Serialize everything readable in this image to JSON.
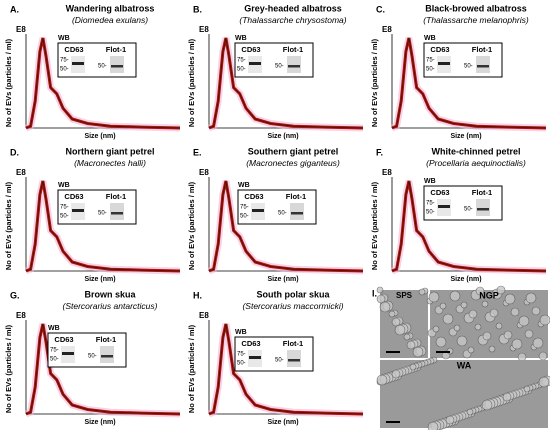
{
  "panels": [
    {
      "letter": "A.",
      "title": "Wandering albatross",
      "species": "Diomedea exulans",
      "exponent": "E8",
      "y_label": "No of EVs (particles / ml)",
      "x_label": "Size (nm)",
      "blot": {
        "label": "WB",
        "markers": [
          "CD63",
          "Flot-1"
        ],
        "sizes_left": [
          "75-",
          "50-"
        ],
        "sizes_right": [
          "50-"
        ]
      }
    },
    {
      "letter": "B.",
      "title": "Grey-headed albatross",
      "species": "Thalassarche chrysostoma",
      "exponent": "E8",
      "y_label": "No of EVs (particles / ml)",
      "x_label": "Size (nm)",
      "blot": {
        "label": "WB",
        "markers": [
          "CD63",
          "Flot-1"
        ],
        "sizes_left": [
          "75-",
          "50-"
        ],
        "sizes_right": [
          "50-"
        ]
      }
    },
    {
      "letter": "C.",
      "title": "Black-browed albatross",
      "species": "Thalassarche melanophris",
      "exponent": "E8",
      "y_label": "No of EVs (particles / ml)",
      "x_label": "Size (nm)",
      "blot": {
        "label": "WB",
        "markers": [
          "CD63",
          "Flot-1"
        ],
        "sizes_left": [
          "75-",
          "50-"
        ],
        "sizes_right": [
          "50-"
        ]
      }
    },
    {
      "letter": "D.",
      "title": "Northern giant petrel",
      "species": "Macronectes halli",
      "exponent": "E8",
      "y_label": "No of EVs (particles / ml)",
      "x_label": "Size (nm)",
      "blot": {
        "label": "WB",
        "markers": [
          "CD63",
          "Flot-1"
        ],
        "sizes_left": [
          "75-",
          "50-"
        ],
        "sizes_right": [
          "50-"
        ]
      }
    },
    {
      "letter": "E.",
      "title": "Southern giant petrel",
      "species": "Macronectes giganteus",
      "exponent": "E8",
      "y_label": "No of EVs (particles / ml)",
      "x_label": "Size (nm)",
      "blot": {
        "label": "WB",
        "markers": [
          "CD63",
          "Flot-1"
        ],
        "sizes_left": [
          "75-",
          "50-"
        ],
        "sizes_right": [
          "50-"
        ]
      }
    },
    {
      "letter": "F.",
      "title": "White-chinned petrel",
      "species": "Procellaria aequinoctialis",
      "exponent": "E8",
      "y_label": "No of EVs (particles / ml)",
      "x_label": "Size (nm)",
      "blot": {
        "label": "WB",
        "markers": [
          "CD63",
          "Flot-1"
        ],
        "sizes_left": [
          "75-",
          "50-"
        ],
        "sizes_right": [
          "50-"
        ]
      }
    },
    {
      "letter": "G.",
      "title": "Brown skua",
      "species": "Stercorarius antarcticus",
      "exponent": "E8",
      "y_label": "No of EVs (particles / ml)",
      "x_label": "Size (nm)",
      "blot": {
        "label": "WB",
        "markers": [
          "CD63",
          "Flot-1"
        ],
        "sizes_left": [
          "75-",
          "50-"
        ],
        "sizes_right": [
          "50-"
        ]
      }
    },
    {
      "letter": "H.",
      "title": "South polar skua",
      "species": "Stercorarius maccormicki",
      "exponent": "E8",
      "y_label": "No of EVs (particles / ml)",
      "x_label": "Size (nm)",
      "blot": {
        "label": "WB",
        "markers": [
          "CD63",
          "Flot-1"
        ],
        "sizes_left": [
          "75-",
          "50-"
        ],
        "sizes_right": [
          "50-"
        ]
      }
    }
  ],
  "micrographs": {
    "letter": "I.",
    "labels": [
      "SPS",
      "NGP",
      "WA"
    ]
  }
}
